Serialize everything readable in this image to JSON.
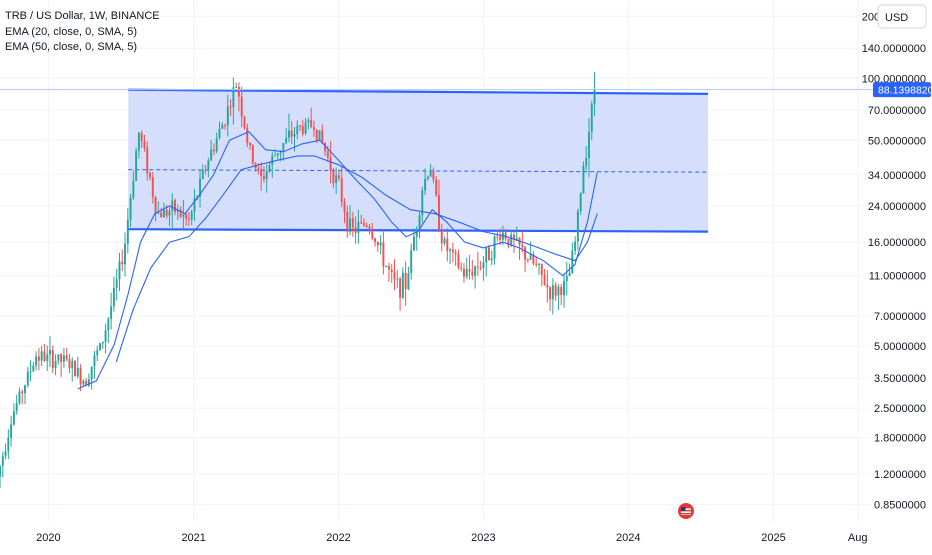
{
  "legend": {
    "title": "TRB / US Dollar, 1W, BINANCE",
    "ema1": "EMA (20, close, 0, SMA, 5)",
    "ema2": "EMA (50, close, 0, SMA, 5)"
  },
  "currency_button": "USD",
  "price_tag": "88.1398820",
  "chart_data": {
    "type": "candlestick",
    "symbol": "TRB / US Dollar",
    "interval": "1W",
    "exchange": "BINANCE",
    "y_scale": "log",
    "ylim": [
      0.7,
      240
    ],
    "xlim": [
      "2019-09-01",
      "2025-09-01"
    ],
    "y_ticks": [
      {
        "v": 200,
        "label": "200.0000000"
      },
      {
        "v": 140,
        "label": "140.0000000"
      },
      {
        "v": 100,
        "label": "100.0000000"
      },
      {
        "v": 70,
        "label": "70.0000000"
      },
      {
        "v": 50,
        "label": "50.0000000"
      },
      {
        "v": 34,
        "label": "34.0000000"
      },
      {
        "v": 24,
        "label": "24.0000000"
      },
      {
        "v": 16,
        "label": "16.0000000"
      },
      {
        "v": 11,
        "label": "11.0000000"
      },
      {
        "v": 7,
        "label": "7.0000000"
      },
      {
        "v": 5,
        "label": "5.0000000"
      },
      {
        "v": 3.5,
        "label": "3.5000000"
      },
      {
        "v": 2.5,
        "label": "2.5000000"
      },
      {
        "v": 1.8,
        "label": "1.8000000"
      },
      {
        "v": 1.2,
        "label": "1.2000000"
      },
      {
        "v": 0.85,
        "label": "0.8500000"
      }
    ],
    "x_ticks": [
      {
        "date": "2020-01-01",
        "label": "2020"
      },
      {
        "date": "2021-01-01",
        "label": "2021"
      },
      {
        "date": "2022-01-01",
        "label": "2022"
      },
      {
        "date": "2023-01-01",
        "label": "2023"
      },
      {
        "date": "2024-01-01",
        "label": "2024"
      },
      {
        "date": "2025-01-01",
        "label": "2025"
      },
      {
        "date": "2025-08-01",
        "label": "Aug"
      }
    ],
    "last_price": 88.139882,
    "channel": {
      "start": "2020-07-20",
      "end": "2024-07-20",
      "upper": [
        88,
        84
      ],
      "lower": [
        18.5,
        18
      ],
      "middle": [
        36,
        35
      ]
    },
    "price_path": [
      [
        "2019-08-25",
        1.15
      ],
      [
        "2019-10-01",
        2.3
      ],
      [
        "2019-12-01",
        4.5
      ],
      [
        "2020-02-15",
        4.2
      ],
      [
        "2020-04-01",
        3.4
      ],
      [
        "2020-05-15",
        5.2
      ],
      [
        "2020-06-15",
        9
      ],
      [
        "2020-07-10",
        15
      ],
      [
        "2020-08-15",
        55
      ],
      [
        "2020-09-01",
        42
      ],
      [
        "2020-10-01",
        22
      ],
      [
        "2020-11-15",
        23
      ],
      [
        "2020-12-20",
        20
      ],
      [
        "2021-02-01",
        38
      ],
      [
        "2021-03-15",
        60
      ],
      [
        "2021-04-20",
        95
      ],
      [
        "2021-05-20",
        45
      ],
      [
        "2021-06-20",
        32
      ],
      [
        "2021-08-01",
        45
      ],
      [
        "2021-09-20",
        57
      ],
      [
        "2021-11-01",
        60
      ],
      [
        "2021-12-01",
        43
      ],
      [
        "2022-01-01",
        30
      ],
      [
        "2022-02-01",
        18
      ],
      [
        "2022-03-15",
        20
      ],
      [
        "2022-04-01",
        17
      ],
      [
        "2022-05-20",
        10
      ],
      [
        "2022-06-20",
        10
      ],
      [
        "2022-08-01",
        30
      ],
      [
        "2022-08-20",
        38
      ],
      [
        "2022-09-20",
        16
      ],
      [
        "2022-11-15",
        11
      ],
      [
        "2023-01-01",
        13
      ],
      [
        "2023-02-15",
        18
      ],
      [
        "2023-04-01",
        15
      ],
      [
        "2023-05-15",
        12
      ],
      [
        "2023-06-20",
        9
      ],
      [
        "2023-08-01",
        10
      ],
      [
        "2023-08-20",
        16
      ],
      [
        "2023-09-10",
        38
      ],
      [
        "2023-10-01",
        70
      ],
      [
        "2023-10-10",
        88
      ]
    ],
    "ema20_path": [
      [
        "2020-03-15",
        3.1
      ],
      [
        "2020-05-01",
        3.4
      ],
      [
        "2020-06-15",
        5.1
      ],
      [
        "2020-07-20",
        9
      ],
      [
        "2020-08-20",
        16
      ],
      [
        "2020-09-25",
        22
      ],
      [
        "2020-11-01",
        24
      ],
      [
        "2020-12-10",
        22
      ],
      [
        "2021-01-15",
        27
      ],
      [
        "2021-02-20",
        34
      ],
      [
        "2021-04-01",
        50
      ],
      [
        "2021-05-20",
        55
      ],
      [
        "2021-07-01",
        45
      ],
      [
        "2021-08-15",
        44
      ],
      [
        "2021-10-01",
        48
      ],
      [
        "2021-11-15",
        50
      ],
      [
        "2022-01-01",
        40
      ],
      [
        "2022-02-15",
        32
      ],
      [
        "2022-04-01",
        26
      ],
      [
        "2022-05-15",
        20
      ],
      [
        "2022-06-20",
        17
      ],
      [
        "2022-07-20",
        18
      ],
      [
        "2022-08-25",
        23
      ],
      [
        "2022-10-01",
        20
      ],
      [
        "2022-11-15",
        16
      ],
      [
        "2023-01-01",
        15
      ],
      [
        "2023-02-20",
        16
      ],
      [
        "2023-04-01",
        15
      ],
      [
        "2023-06-01",
        13
      ],
      [
        "2023-07-20",
        11
      ],
      [
        "2023-08-20",
        12.5
      ],
      [
        "2023-09-20",
        20
      ],
      [
        "2023-10-15",
        35
      ]
    ],
    "ema50_path": [
      [
        "2020-06-20",
        4.2
      ],
      [
        "2020-08-01",
        7.5
      ],
      [
        "2020-09-15",
        12
      ],
      [
        "2020-11-01",
        16
      ],
      [
        "2020-12-20",
        17
      ],
      [
        "2021-02-01",
        21
      ],
      [
        "2021-03-15",
        27
      ],
      [
        "2021-05-01",
        36
      ],
      [
        "2021-06-15",
        38
      ],
      [
        "2021-08-01",
        40
      ],
      [
        "2021-09-20",
        42
      ],
      [
        "2021-11-01",
        42
      ],
      [
        "2022-01-01",
        38
      ],
      [
        "2022-03-01",
        33
      ],
      [
        "2022-05-01",
        27
      ],
      [
        "2022-07-01",
        23
      ],
      [
        "2022-09-01",
        22
      ],
      [
        "2022-11-01",
        20
      ],
      [
        "2023-01-01",
        18
      ],
      [
        "2023-03-01",
        17
      ],
      [
        "2023-05-01",
        15.5
      ],
      [
        "2023-07-01",
        14
      ],
      [
        "2023-08-20",
        13
      ],
      [
        "2023-09-20",
        16
      ],
      [
        "2023-10-15",
        22
      ]
    ]
  },
  "colors": {
    "up": "#26a69a",
    "down": "#ef5350",
    "ema": "#2962ff",
    "channel_line": "#2962ff",
    "channel_fill": "#d0dcfc",
    "price_line": "#b2c8f0",
    "price_tag_bg": "#2962ff",
    "text": "#131722",
    "muted": "#5d606b",
    "grid": "#f0f3fa"
  },
  "icons": {
    "flag": "us-flag-icon"
  }
}
